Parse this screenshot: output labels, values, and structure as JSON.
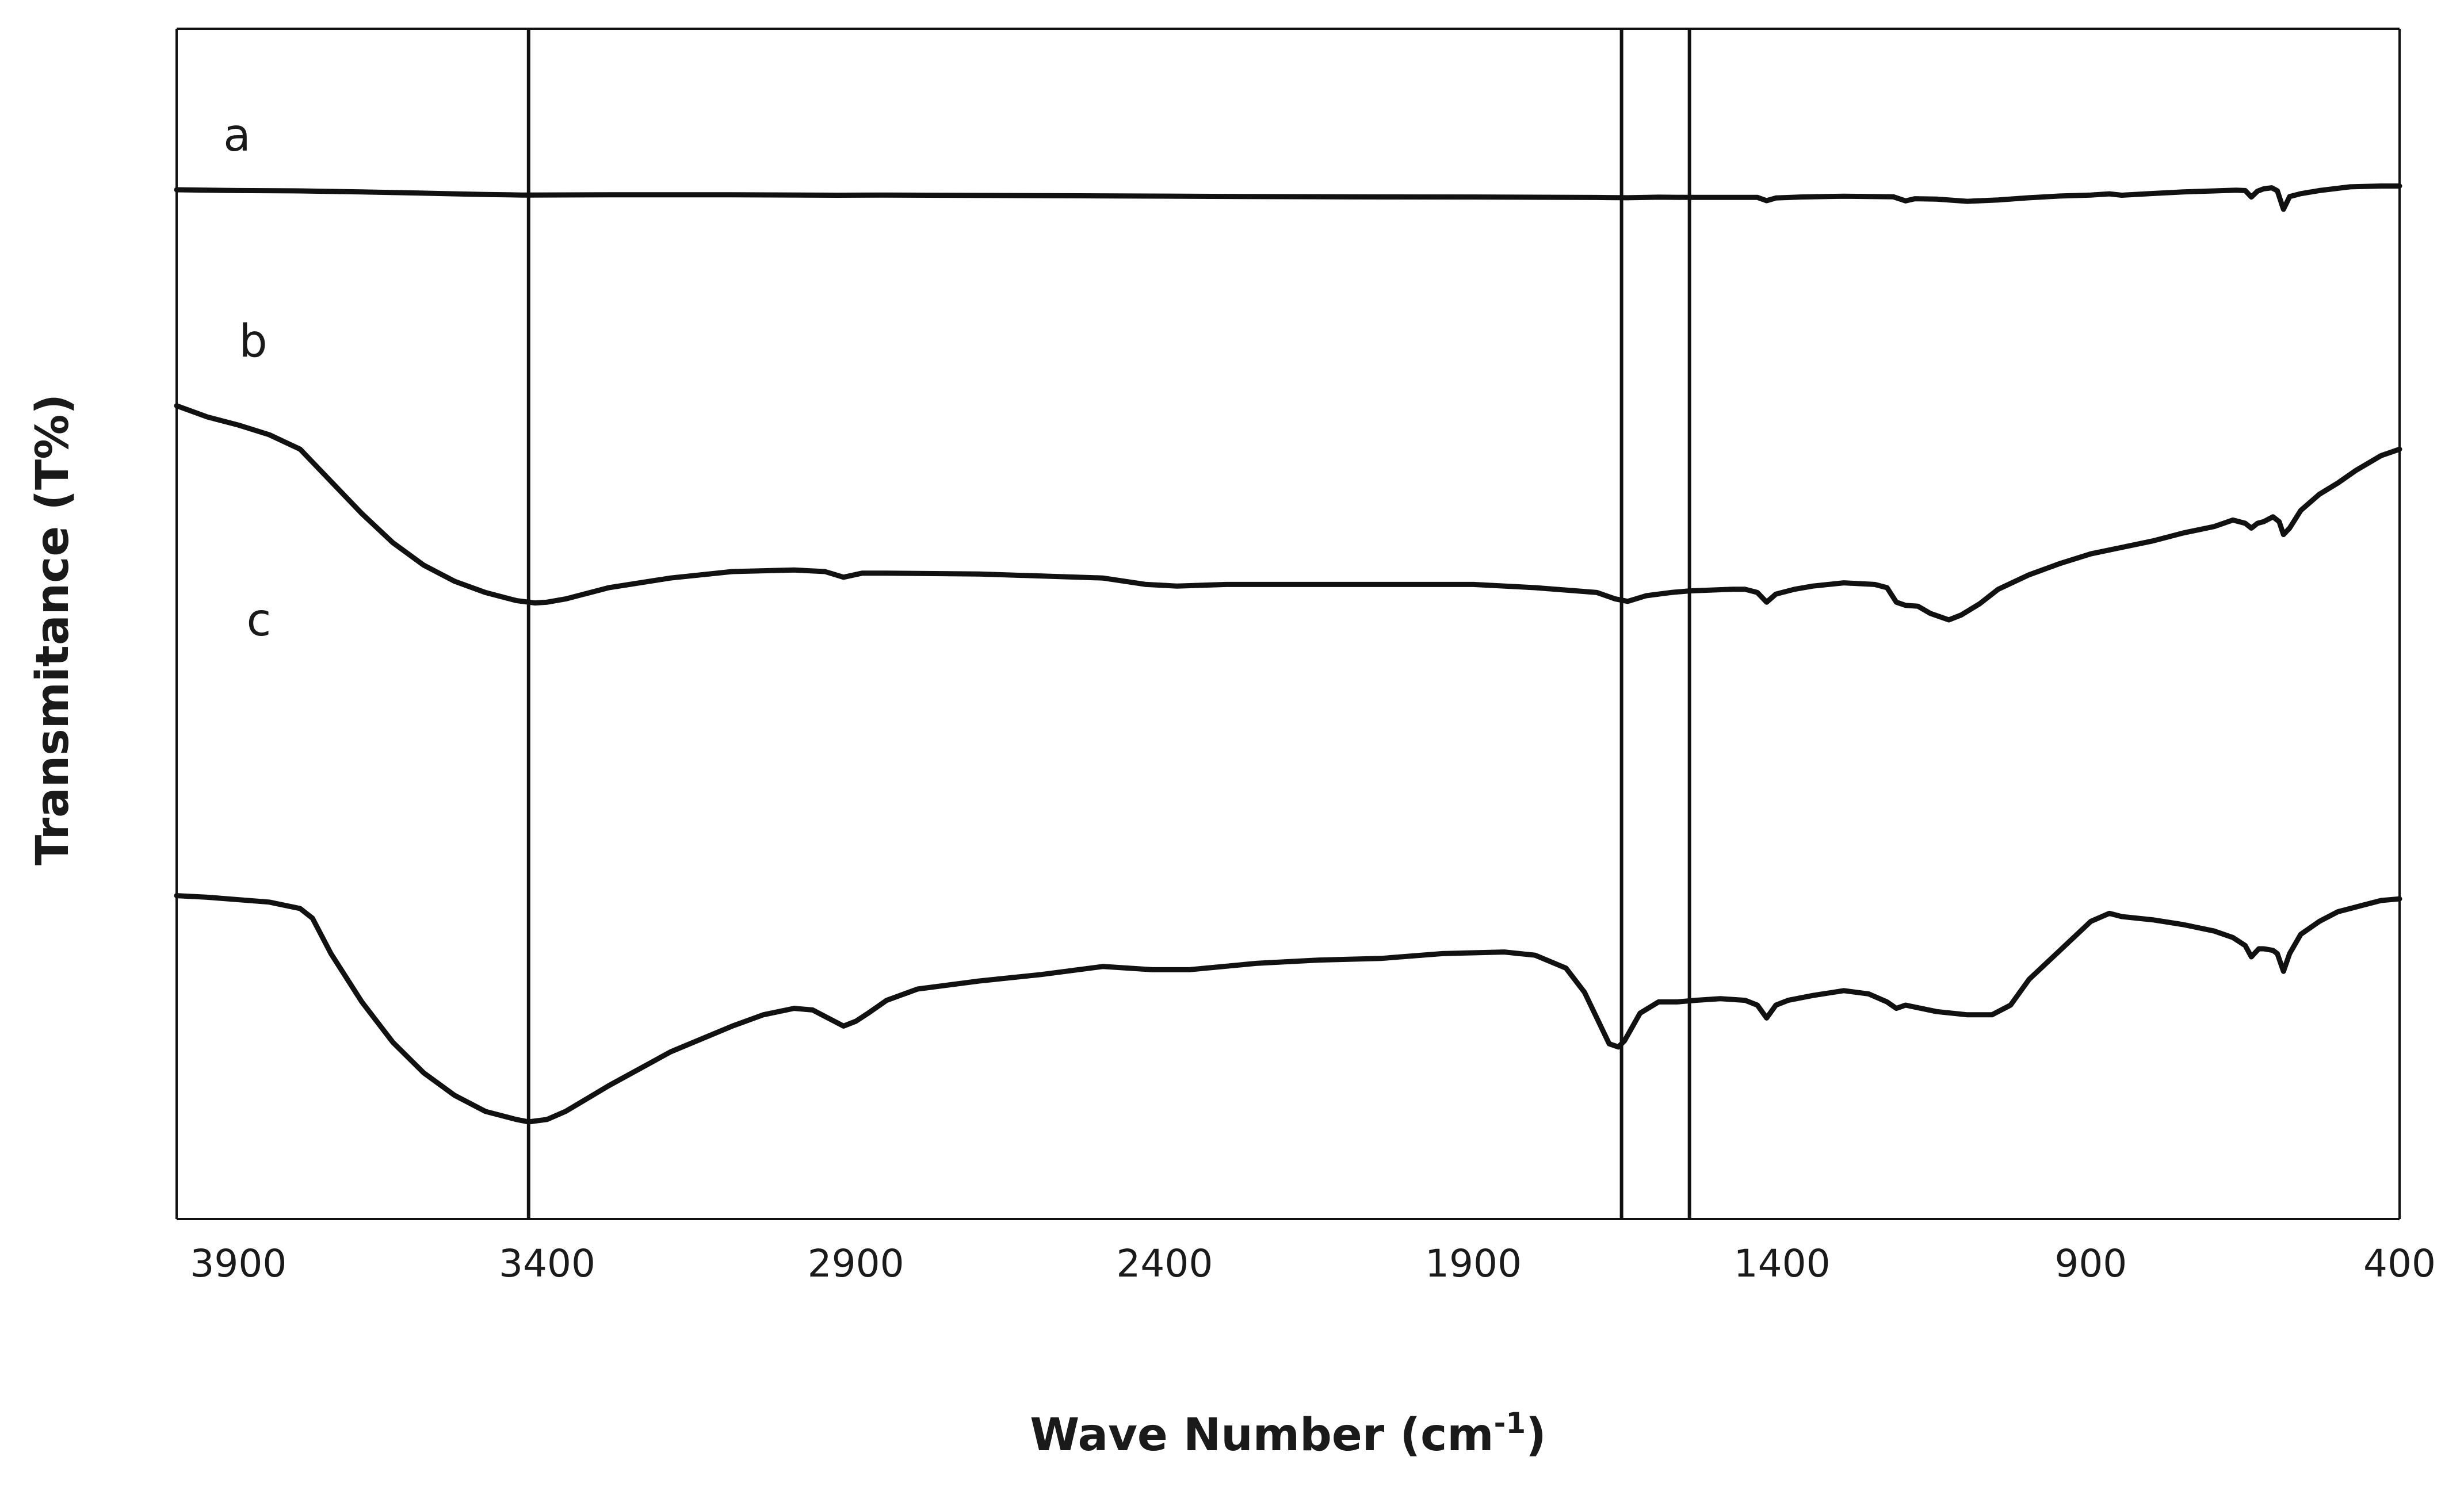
{
  "chart_data": {
    "type": "line",
    "title": "",
    "xlabel": "Wave Number (cm-1)",
    "xlabel_parts": {
      "main": "Wave Number (cm",
      "sup": "-1",
      "end": ")"
    },
    "ylabel": "Transmitance (T%)",
    "xlim": [
      4000,
      400
    ],
    "x_reversed": true,
    "xticks": [
      3900,
      3400,
      2900,
      2400,
      1900,
      1400,
      900,
      400
    ],
    "y_ticks_shown": false,
    "grid": false,
    "legend": "none",
    "line_color": "#111111",
    "reference_lines": [
      3430,
      1660,
      1550
    ],
    "series": [
      {
        "name": "a",
        "points": [
          [
            4000,
            100
          ],
          [
            3900,
            99.2
          ],
          [
            3800,
            98.8
          ],
          [
            3700,
            97.8
          ],
          [
            3600,
            96.5
          ],
          [
            3500,
            95.2
          ],
          [
            3440,
            94.6
          ],
          [
            3300,
            94.8
          ],
          [
            3100,
            94.8
          ],
          [
            2930,
            94.4
          ],
          [
            2850,
            94.6
          ],
          [
            2600,
            94
          ],
          [
            2300,
            93.2
          ],
          [
            2100,
            92.7
          ],
          [
            1900,
            92.6
          ],
          [
            1700,
            92.1
          ],
          [
            1650,
            91.8
          ],
          [
            1600,
            92.4
          ],
          [
            1550,
            92.2
          ],
          [
            1440,
            92.2
          ],
          [
            1425,
            88.8
          ],
          [
            1410,
            91.6
          ],
          [
            1370,
            92.6
          ],
          [
            1300,
            93.4
          ],
          [
            1220,
            92.8
          ],
          [
            1200,
            88.6
          ],
          [
            1185,
            90.8
          ],
          [
            1150,
            90.4
          ],
          [
            1100,
            88.2
          ],
          [
            1050,
            89.6
          ],
          [
            1000,
            91.8
          ],
          [
            950,
            93.6
          ],
          [
            900,
            94.6
          ],
          [
            870,
            95.8
          ],
          [
            850,
            94.4
          ],
          [
            800,
            96.2
          ],
          [
            750,
            97.8
          ],
          [
            700,
            98.8
          ],
          [
            665,
            99.6
          ],
          [
            650,
            99.2
          ],
          [
            640,
            92.6
          ],
          [
            630,
            98.6
          ],
          [
            620,
            101
          ],
          [
            607,
            102
          ],
          [
            598,
            99
          ],
          [
            588,
            80
          ],
          [
            578,
            93
          ],
          [
            560,
            96
          ],
          [
            530,
            99.2
          ],
          [
            480,
            103
          ],
          [
            430,
            103.8
          ],
          [
            400,
            103.8
          ]
        ]
      },
      {
        "name": "b",
        "points": [
          [
            4000,
            73
          ],
          [
            3950,
            66
          ],
          [
            3900,
            61
          ],
          [
            3850,
            55
          ],
          [
            3800,
            46
          ],
          [
            3750,
            26
          ],
          [
            3700,
            6
          ],
          [
            3650,
            -12
          ],
          [
            3600,
            -26
          ],
          [
            3550,
            -36
          ],
          [
            3500,
            -43
          ],
          [
            3450,
            -48
          ],
          [
            3420,
            -49.5
          ],
          [
            3400,
            -49
          ],
          [
            3370,
            -47
          ],
          [
            3300,
            -40
          ],
          [
            3200,
            -34
          ],
          [
            3100,
            -30
          ],
          [
            3000,
            -29
          ],
          [
            2950,
            -30
          ],
          [
            2920,
            -33.5
          ],
          [
            2890,
            -31
          ],
          [
            2850,
            -31
          ],
          [
            2700,
            -31.5
          ],
          [
            2500,
            -34
          ],
          [
            2430,
            -38
          ],
          [
            2380,
            -39
          ],
          [
            2300,
            -38
          ],
          [
            2100,
            -38
          ],
          [
            1900,
            -38
          ],
          [
            1800,
            -40
          ],
          [
            1700,
            -43
          ],
          [
            1670,
            -47
          ],
          [
            1650,
            -48.5
          ],
          [
            1620,
            -45
          ],
          [
            1580,
            -43
          ],
          [
            1550,
            -42
          ],
          [
            1480,
            -41
          ],
          [
            1460,
            -41
          ],
          [
            1440,
            -43
          ],
          [
            1425,
            -49
          ],
          [
            1410,
            -44
          ],
          [
            1380,
            -41
          ],
          [
            1350,
            -39
          ],
          [
            1300,
            -37
          ],
          [
            1250,
            -38
          ],
          [
            1230,
            -40
          ],
          [
            1215,
            -49
          ],
          [
            1200,
            -51
          ],
          [
            1180,
            -51.5
          ],
          [
            1160,
            -56
          ],
          [
            1130,
            -60
          ],
          [
            1110,
            -57
          ],
          [
            1080,
            -50
          ],
          [
            1050,
            -41
          ],
          [
            1000,
            -32
          ],
          [
            950,
            -25
          ],
          [
            900,
            -19
          ],
          [
            850,
            -15
          ],
          [
            800,
            -11
          ],
          [
            750,
            -6
          ],
          [
            700,
            -2
          ],
          [
            670,
            2
          ],
          [
            650,
            0
          ],
          [
            640,
            -3
          ],
          [
            630,
            0
          ],
          [
            620,
            1
          ],
          [
            605,
            4
          ],
          [
            595,
            1
          ],
          [
            588,
            -7
          ],
          [
            578,
            -3
          ],
          [
            560,
            8
          ],
          [
            530,
            18
          ],
          [
            500,
            25
          ],
          [
            470,
            33
          ],
          [
            430,
            42
          ],
          [
            400,
            46
          ]
        ]
      },
      {
        "name": "c",
        "points": [
          [
            4000,
            -42
          ],
          [
            3950,
            -43
          ],
          [
            3850,
            -46
          ],
          [
            3800,
            -50
          ],
          [
            3780,
            -56
          ],
          [
            3750,
            -78
          ],
          [
            3700,
            -108
          ],
          [
            3650,
            -133
          ],
          [
            3600,
            -152
          ],
          [
            3550,
            -166
          ],
          [
            3500,
            -176
          ],
          [
            3450,
            -181
          ],
          [
            3430,
            -182.5
          ],
          [
            3400,
            -181
          ],
          [
            3370,
            -176
          ],
          [
            3300,
            -160
          ],
          [
            3200,
            -139
          ],
          [
            3100,
            -123
          ],
          [
            3050,
            -116
          ],
          [
            3000,
            -112
          ],
          [
            2970,
            -113
          ],
          [
            2950,
            -117
          ],
          [
            2920,
            -123
          ],
          [
            2900,
            -120
          ],
          [
            2880,
            -115
          ],
          [
            2850,
            -107
          ],
          [
            2800,
            -100
          ],
          [
            2700,
            -95
          ],
          [
            2600,
            -91
          ],
          [
            2500,
            -86
          ],
          [
            2420,
            -88
          ],
          [
            2360,
            -88
          ],
          [
            2250,
            -84
          ],
          [
            2150,
            -82
          ],
          [
            2050,
            -81
          ],
          [
            1950,
            -78
          ],
          [
            1850,
            -77
          ],
          [
            1800,
            -79
          ],
          [
            1750,
            -87
          ],
          [
            1720,
            -102
          ],
          [
            1700,
            -118
          ],
          [
            1680,
            -134
          ],
          [
            1665,
            -136
          ],
          [
            1655,
            -132
          ],
          [
            1630,
            -115
          ],
          [
            1600,
            -108
          ],
          [
            1570,
            -108
          ],
          [
            1540,
            -107
          ],
          [
            1500,
            -106
          ],
          [
            1460,
            -107
          ],
          [
            1440,
            -110
          ],
          [
            1425,
            -118
          ],
          [
            1410,
            -110
          ],
          [
            1390,
            -107
          ],
          [
            1350,
            -104
          ],
          [
            1300,
            -101
          ],
          [
            1260,
            -103
          ],
          [
            1230,
            -108
          ],
          [
            1215,
            -112
          ],
          [
            1200,
            -110
          ],
          [
            1150,
            -114
          ],
          [
            1100,
            -116
          ],
          [
            1060,
            -116
          ],
          [
            1030,
            -110
          ],
          [
            1000,
            -94
          ],
          [
            950,
            -76
          ],
          [
            900,
            -58
          ],
          [
            870,
            -53
          ],
          [
            850,
            -55
          ],
          [
            800,
            -57
          ],
          [
            750,
            -60
          ],
          [
            700,
            -64
          ],
          [
            670,
            -68
          ],
          [
            650,
            -73
          ],
          [
            640,
            -80
          ],
          [
            628,
            -75
          ],
          [
            620,
            -75
          ],
          [
            605,
            -76
          ],
          [
            598,
            -78
          ],
          [
            588,
            -89
          ],
          [
            578,
            -78
          ],
          [
            560,
            -66
          ],
          [
            530,
            -58
          ],
          [
            500,
            -52
          ],
          [
            460,
            -48
          ],
          [
            430,
            -45
          ],
          [
            400,
            -44
          ]
        ]
      }
    ]
  }
}
